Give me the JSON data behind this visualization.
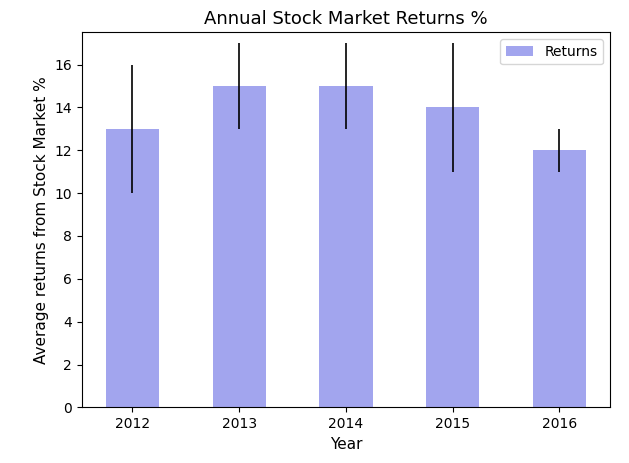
{
  "title": "Annual Stock Market Returns %",
  "xlabel": "Year",
  "ylabel": "Average returns from Stock Market %",
  "categories": [
    2012,
    2013,
    2014,
    2015,
    2016
  ],
  "values": [
    13,
    15,
    15,
    14,
    12
  ],
  "error_upper": [
    3,
    2,
    2,
    3,
    1
  ],
  "error_lower": [
    3,
    2,
    2,
    3,
    1
  ],
  "bar_color": "#7B7FE8",
  "bar_alpha": 0.7,
  "legend_label": "Returns",
  "ylim": [
    0,
    17.5
  ],
  "bar_width": 0.5,
  "title_fontsize": 13,
  "label_fontsize": 11,
  "tick_fontsize": 10,
  "legend_fontsize": 10,
  "ecolor": "black",
  "capsize": 0,
  "elinewidth": 1.2
}
